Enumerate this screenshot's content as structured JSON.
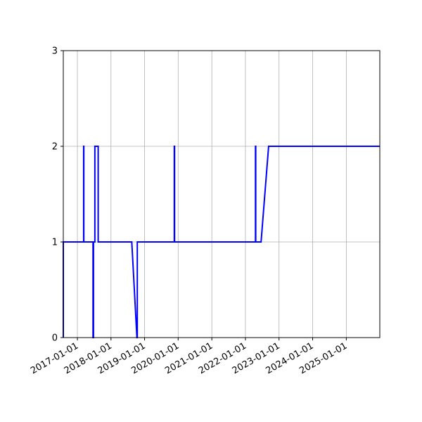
{
  "chart_data": {
    "type": "line",
    "title": "",
    "xlabel": "",
    "ylabel": "",
    "x_axis_type": "date",
    "xlim": [
      "2016-08-01",
      "2025-12-31"
    ],
    "ylim": [
      0,
      3
    ],
    "x_ticks": [
      "2017-01-01",
      "2018-01-01",
      "2019-01-01",
      "2020-01-01",
      "2021-01-01",
      "2022-01-01",
      "2023-01-01",
      "2024-01-01",
      "2025-01-01"
    ],
    "y_ticks": [
      0,
      1,
      2,
      3
    ],
    "grid": true,
    "legend": "none",
    "colors": {
      "line": "#0000ff",
      "grid": "#b0b0b0",
      "axes": "#000000"
    },
    "series": [
      {
        "points": [
          [
            "2016-08-01",
            0
          ],
          [
            "2016-08-01",
            1
          ],
          [
            "2017-03-10",
            1
          ],
          [
            "2017-03-10",
            2
          ],
          [
            "2017-03-12",
            2
          ],
          [
            "2017-03-12",
            1
          ],
          [
            "2017-06-20",
            1
          ],
          [
            "2017-06-20",
            0
          ],
          [
            "2017-06-25",
            0
          ],
          [
            "2017-06-25",
            1
          ],
          [
            "2017-07-10",
            1
          ],
          [
            "2017-07-10",
            2
          ],
          [
            "2017-08-15",
            2
          ],
          [
            "2017-08-15",
            1
          ],
          [
            "2018-08-15",
            1
          ],
          [
            "2018-10-10",
            0
          ],
          [
            "2018-10-14",
            0
          ],
          [
            "2018-10-14",
            1
          ],
          [
            "2019-11-20",
            1
          ],
          [
            "2019-11-20",
            2
          ],
          [
            "2019-11-23",
            2
          ],
          [
            "2019-11-23",
            1
          ],
          [
            "2022-04-20",
            1
          ],
          [
            "2022-04-20",
            2
          ],
          [
            "2022-04-23",
            2
          ],
          [
            "2022-04-23",
            1
          ],
          [
            "2022-06-20",
            1
          ],
          [
            "2022-09-10",
            2
          ],
          [
            "2025-12-31",
            2
          ]
        ]
      }
    ]
  }
}
